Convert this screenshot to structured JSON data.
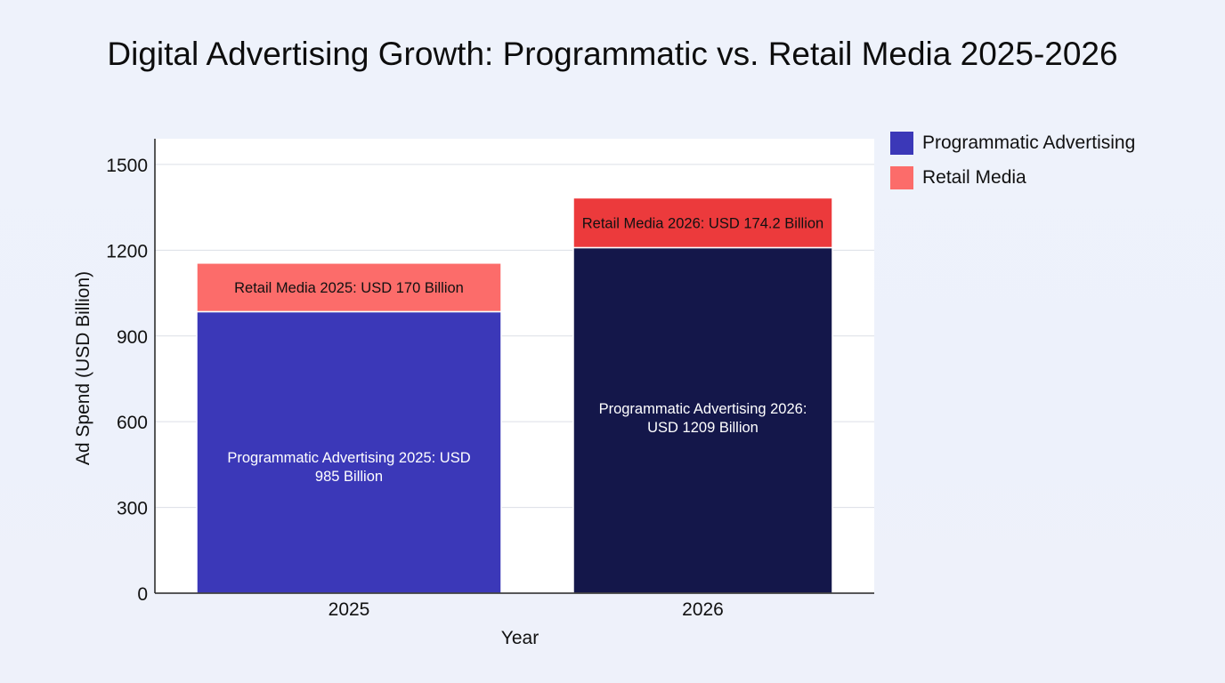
{
  "chart_data": {
    "type": "bar",
    "stacked": true,
    "title": "Digital Advertising Growth: Programmatic vs. Retail Media 2025-2026",
    "xlabel": "Year",
    "ylabel": "Ad Spend (USD Billion)",
    "categories": [
      "2025",
      "2026"
    ],
    "ylim": [
      0,
      1590
    ],
    "yticks": [
      0,
      300,
      600,
      900,
      1200,
      1500
    ],
    "grid": true,
    "legend_position": "right-top",
    "series": [
      {
        "name": "Programmatic Advertising",
        "values": [
          985,
          1209
        ],
        "colors": [
          "#3b38b8",
          "#14174a"
        ],
        "labels": [
          "Programmatic Advertising 2025: USD 985 Billion",
          "Programmatic Advertising 2026: USD 1209 Billion"
        ],
        "label_color": "#ffffff"
      },
      {
        "name": "Retail Media",
        "values": [
          170,
          174.2
        ],
        "colors": [
          "#fc6c6a",
          "#ec3a3c"
        ],
        "labels": [
          "Retail Media 2025: USD 170 Billion",
          "Retail Media 2026: USD 174.2 Billion"
        ],
        "label_color": "#111111"
      }
    ],
    "legend": [
      {
        "name": "Programmatic Advertising",
        "color": "#3b38b8"
      },
      {
        "name": "Retail Media",
        "color": "#fc6c6a"
      }
    ]
  }
}
